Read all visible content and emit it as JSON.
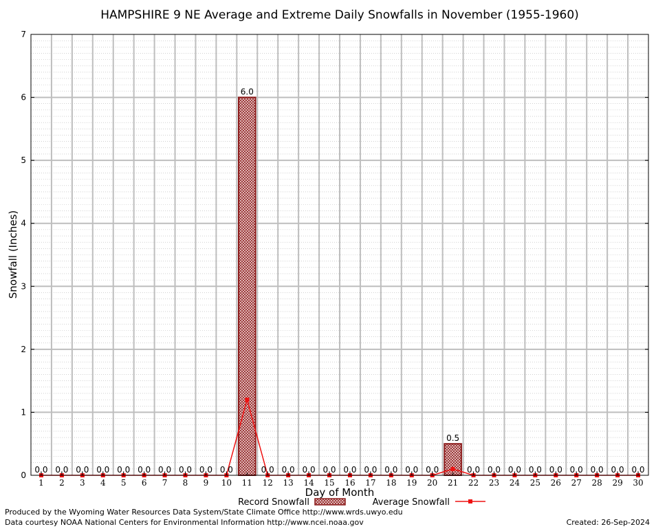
{
  "chart_data": {
    "type": "bar",
    "title": "HAMPSHIRE 9 NE Average and Extreme Daily Snowfalls in November (1955-1960)",
    "xlabel": "Day of Month",
    "ylabel": "Snowfall (Inches)",
    "ylim": [
      0,
      7
    ],
    "y_ticks": [
      "0",
      "1",
      "2",
      "3",
      "4",
      "5",
      "6",
      "7"
    ],
    "categories": [
      "1",
      "2",
      "3",
      "4",
      "5",
      "6",
      "7",
      "8",
      "9",
      "10",
      "11",
      "12",
      "13",
      "14",
      "15",
      "16",
      "17",
      "18",
      "19",
      "20",
      "21",
      "22",
      "23",
      "24",
      "25",
      "26",
      "27",
      "28",
      "29",
      "30"
    ],
    "series": [
      {
        "name": "Record Snowfall",
        "kind": "bar",
        "color": "#8b1a1a",
        "values": [
          0,
          0,
          0,
          0,
          0,
          0,
          0,
          0,
          0,
          0,
          6.0,
          0,
          0,
          0,
          0,
          0,
          0,
          0,
          0,
          0,
          0.5,
          0,
          0,
          0,
          0,
          0,
          0,
          0,
          0,
          0
        ],
        "labels": [
          "0.0",
          "0.0",
          "0.0",
          "0.0",
          "0.0",
          "0.0",
          "0.0",
          "0.0",
          "0.0",
          "0.0",
          "6.0",
          "0.0",
          "0.0",
          "0.0",
          "0.0",
          "0.0",
          "0.0",
          "0.0",
          "0.0",
          "0.0",
          "0.5",
          "0.0",
          "0.0",
          "0.0",
          "0.0",
          "0.0",
          "0.0",
          "0.0",
          "0.0",
          "0.0"
        ]
      },
      {
        "name": "Average Snowfall",
        "kind": "line",
        "color": "#ee1111",
        "values": [
          0,
          0,
          0,
          0,
          0,
          0,
          0,
          0,
          0,
          0,
          1.2,
          0,
          0,
          0,
          0,
          0,
          0,
          0,
          0,
          0,
          0.1,
          0,
          0,
          0,
          0,
          0,
          0,
          0,
          0,
          0
        ]
      }
    ],
    "grid": true,
    "legend_position": "bottom-center"
  },
  "footer": {
    "produced_by": "Produced by the Wyoming Water Resources Data System/State Climate Office http://www.wrds.uwyo.edu",
    "data_courtesy": "Data courtesy NOAA National Centers for Environmental Information http://www.ncei.noaa.gov",
    "created": "Created: 26-Sep-2024"
  }
}
